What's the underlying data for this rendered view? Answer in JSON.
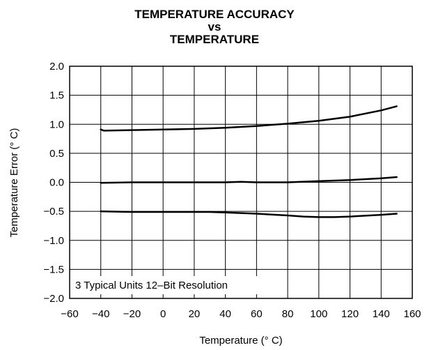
{
  "chart_data": {
    "type": "line",
    "title": [
      "TEMPERATURE ACCURACY",
      "vs",
      "TEMPERATURE"
    ],
    "xlabel": "Temperature (° C)",
    "ylabel": "Temperature Error (° C)",
    "xlim": [
      -60,
      160
    ],
    "ylim": [
      -2.0,
      2.0
    ],
    "x_ticks": [
      -60,
      -40,
      -20,
      0,
      20,
      40,
      60,
      80,
      100,
      120,
      140,
      160
    ],
    "x_tick_labels": [
      "−60",
      "−40",
      "−20",
      "0",
      "20",
      "40",
      "60",
      "80",
      "100",
      "120",
      "140",
      "160"
    ],
    "y_ticks": [
      2.0,
      1.5,
      1.0,
      0.5,
      0.0,
      -0.5,
      -1.0,
      -1.5,
      -2.0
    ],
    "y_tick_labels": [
      "2.0",
      "1.5",
      "1.0",
      "0.5",
      "0.0",
      "−0.5",
      "−1.0",
      "−1.5",
      "−2.0"
    ],
    "grid": true,
    "annotation": "3 Typical Units 12–Bit Resolution",
    "line_color": "#000000",
    "series": [
      {
        "x": [
          -40,
          -38,
          -20,
          0,
          20,
          40,
          60,
          80,
          100,
          120,
          140,
          150
        ],
        "y": [
          0.91,
          0.89,
          0.9,
          0.91,
          0.92,
          0.94,
          0.97,
          1.01,
          1.06,
          1.13,
          1.24,
          1.31
        ]
      },
      {
        "x": [
          -40,
          -20,
          0,
          20,
          40,
          50,
          60,
          80,
          100,
          120,
          140,
          150
        ],
        "y": [
          -0.01,
          0.0,
          0.0,
          0.0,
          0.0,
          0.01,
          0.0,
          0.0,
          0.02,
          0.04,
          0.07,
          0.09
        ]
      },
      {
        "x": [
          -40,
          -20,
          0,
          20,
          30,
          40,
          60,
          80,
          90,
          100,
          110,
          120,
          140,
          150
        ],
        "y": [
          -0.5,
          -0.51,
          -0.51,
          -0.51,
          -0.51,
          -0.52,
          -0.54,
          -0.57,
          -0.59,
          -0.6,
          -0.6,
          -0.59,
          -0.56,
          -0.54
        ]
      }
    ]
  }
}
